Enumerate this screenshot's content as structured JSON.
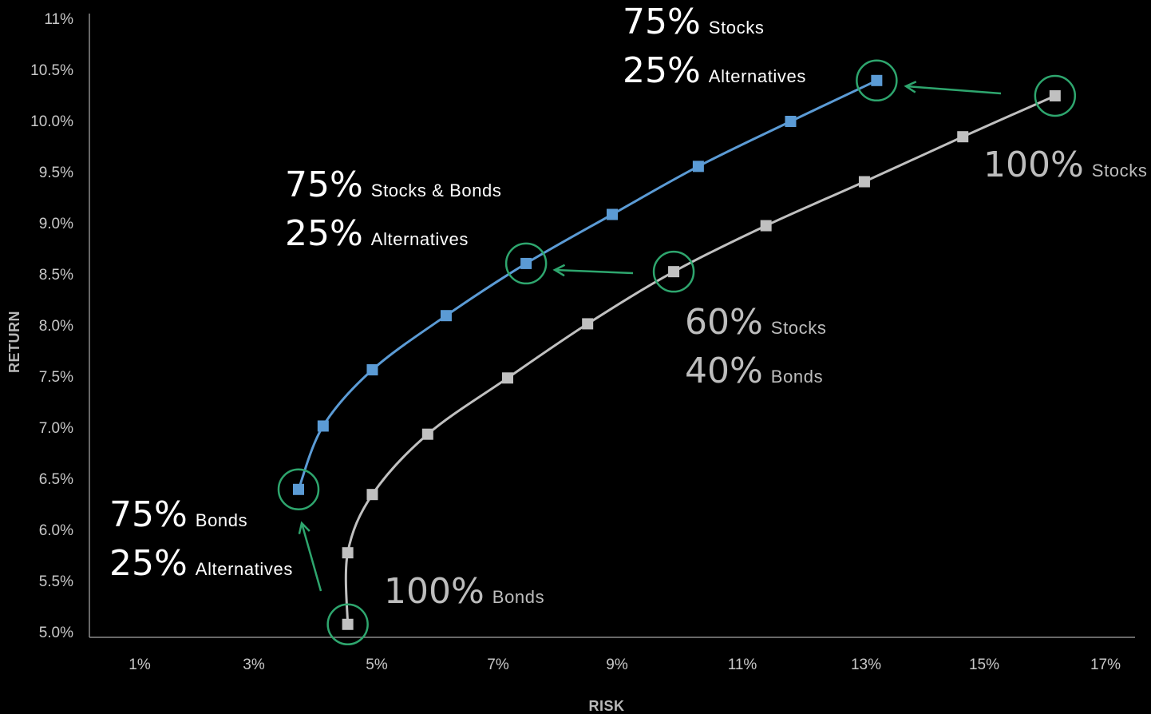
{
  "chart_data": {
    "type": "line",
    "xlabel": "RISK",
    "ylabel": "RETURN",
    "x_ticks": [
      "1%",
      "3%",
      "5%",
      "7%",
      "9%",
      "11%",
      "13%",
      "15%",
      "17%"
    ],
    "y_ticks": [
      "5.0%",
      "5.5%",
      "6.0%",
      "6.5%",
      "7.0%",
      "7.5%",
      "8.0%",
      "8.5%",
      "9.0%",
      "9.5%",
      "10.0%",
      "10.5%",
      "11%"
    ],
    "xlim": [
      0.2,
      17.2
    ],
    "ylim": [
      5.0,
      11.0
    ],
    "grid": false,
    "series": [
      {
        "color": "#5b9bd5",
        "points": [
          {
            "x": 3.6,
            "y": 6.4
          },
          {
            "x": 4.0,
            "y": 7.02
          },
          {
            "x": 4.8,
            "y": 7.57
          },
          {
            "x": 6.0,
            "y": 8.1
          },
          {
            "x": 7.3,
            "y": 8.61
          },
          {
            "x": 8.7,
            "y": 9.09
          },
          {
            "x": 10.1,
            "y": 9.56
          },
          {
            "x": 11.6,
            "y": 10.0
          },
          {
            "x": 13.0,
            "y": 10.4
          }
        ]
      },
      {
        "color": "#c0c0c0",
        "points": [
          {
            "x": 4.4,
            "y": 5.08
          },
          {
            "x": 4.4,
            "y": 5.78
          },
          {
            "x": 4.8,
            "y": 6.35
          },
          {
            "x": 5.7,
            "y": 6.94
          },
          {
            "x": 7.0,
            "y": 7.49
          },
          {
            "x": 8.3,
            "y": 8.02
          },
          {
            "x": 9.7,
            "y": 8.53
          },
          {
            "x": 11.2,
            "y": 8.98
          },
          {
            "x": 12.8,
            "y": 9.41
          },
          {
            "x": 14.4,
            "y": 9.85
          },
          {
            "x": 15.9,
            "y": 10.25
          }
        ]
      }
    ],
    "annotations": [
      {
        "big1": "75%",
        "small1": "Stocks",
        "big2": "25%",
        "small2": "Alternatives",
        "color": "#ffffff"
      },
      {
        "big1": "100%",
        "small1": "Stocks",
        "color": "#bdbdbd"
      },
      {
        "big1": "75%",
        "small1": "Stocks & Bonds",
        "big2": "25%",
        "small2": "Alternatives",
        "color": "#ffffff"
      },
      {
        "big1": "60%",
        "small1": "Stocks",
        "big2": "40%",
        "small2": "Bonds",
        "color": "#bdbdbd"
      },
      {
        "big1": "75%",
        "small1": "Bonds",
        "big2": "25%",
        "small2": "Alternatives",
        "color": "#ffffff"
      },
      {
        "big1": "100%",
        "small1": "Bonds",
        "color": "#bdbdbd"
      }
    ],
    "highlight_color": "#2ea66e"
  }
}
